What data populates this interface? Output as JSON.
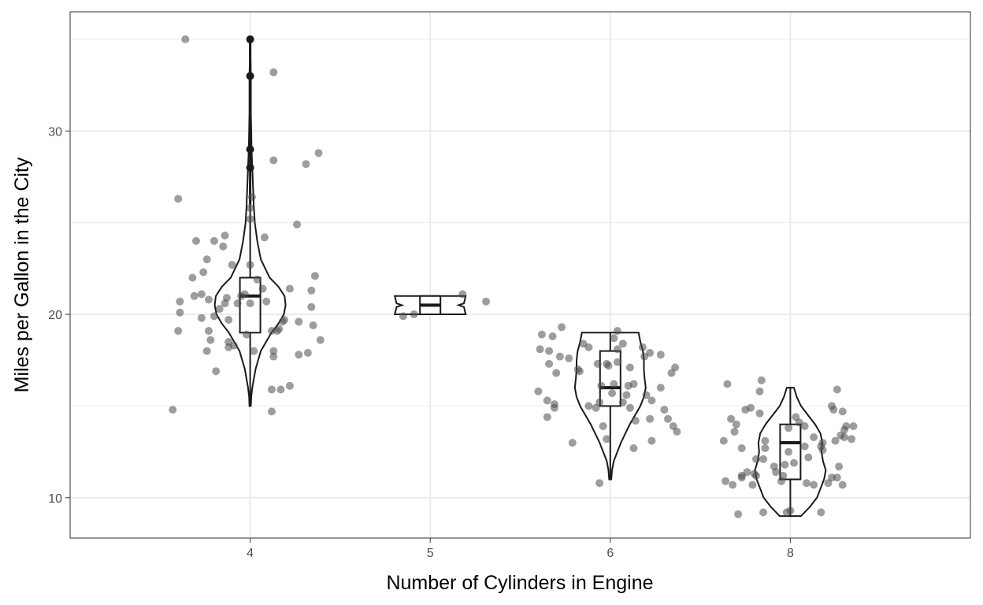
{
  "chart_data": {
    "type": "violin",
    "title": "",
    "xlabel": "Number of Cylinders in Engine",
    "ylabel": "Miles per Gallon in the City",
    "categories": [
      "4",
      "5",
      "6",
      "8"
    ],
    "ylim": [
      7.8,
      36.5
    ],
    "yticks": [
      10,
      20,
      30
    ],
    "grid": true,
    "colors": {
      "point": "#4d4d4d",
      "outline": "#1a1a1a",
      "grid": "#ebebeb",
      "panel_border": "#333333"
    },
    "violins": [
      {
        "category": "4",
        "density": [
          [
            15,
            0.02
          ],
          [
            15.5,
            0.03
          ],
          [
            16,
            0.06
          ],
          [
            17,
            0.15
          ],
          [
            18,
            0.3
          ],
          [
            19,
            0.6
          ],
          [
            19.5,
            0.8
          ],
          [
            20,
            0.95
          ],
          [
            20.5,
            1.0
          ],
          [
            21,
            0.97
          ],
          [
            21.5,
            0.8
          ],
          [
            22,
            0.55
          ],
          [
            23,
            0.3
          ],
          [
            24,
            0.2
          ],
          [
            25,
            0.13
          ],
          [
            26,
            0.1
          ],
          [
            27,
            0.08
          ],
          [
            28,
            0.06
          ],
          [
            29,
            0.04
          ],
          [
            30,
            0.03
          ],
          [
            31,
            0.02
          ],
          [
            32,
            0.02
          ],
          [
            33,
            0.02
          ],
          [
            34,
            0.01
          ],
          [
            35,
            0.01
          ]
        ]
      },
      {
        "category": "5",
        "density": [
          [
            20,
            1.0
          ],
          [
            20.4,
            0.95
          ],
          [
            20.5,
            0.8
          ],
          [
            20.6,
            0.95
          ],
          [
            21,
            1.0
          ]
        ]
      },
      {
        "category": "6",
        "density": [
          [
            11,
            0.03
          ],
          [
            11.5,
            0.05
          ],
          [
            12,
            0.1
          ],
          [
            13,
            0.3
          ],
          [
            14,
            0.55
          ],
          [
            15,
            0.85
          ],
          [
            15.5,
            0.95
          ],
          [
            16,
            1.0
          ],
          [
            16.5,
            0.97
          ],
          [
            17,
            0.95
          ],
          [
            17.5,
            0.95
          ],
          [
            18,
            0.92
          ],
          [
            18.5,
            0.85
          ],
          [
            19,
            0.8
          ]
        ]
      },
      {
        "category": "8",
        "density": [
          [
            9,
            0.3
          ],
          [
            9.5,
            0.55
          ],
          [
            10,
            0.75
          ],
          [
            10.5,
            0.85
          ],
          [
            11,
            0.95
          ],
          [
            11.5,
            1.0
          ],
          [
            12,
            0.92
          ],
          [
            12.5,
            0.88
          ],
          [
            13,
            0.9
          ],
          [
            13.5,
            0.85
          ],
          [
            14,
            0.7
          ],
          [
            14.5,
            0.5
          ],
          [
            15,
            0.3
          ],
          [
            15.5,
            0.18
          ],
          [
            16,
            0.1
          ]
        ]
      }
    ],
    "boxes": [
      {
        "category": "4",
        "q1": 19,
        "median": 21,
        "q3": 22,
        "whisker_low": 15,
        "whisker_high": 26,
        "outliers": [
          28,
          29,
          33,
          35
        ]
      },
      {
        "category": "5",
        "q1": 20,
        "median": 20.5,
        "q3": 21,
        "whisker_low": 20,
        "whisker_high": 21,
        "outliers": []
      },
      {
        "category": "6",
        "q1": 15,
        "median": 16,
        "q3": 18,
        "whisker_low": 11,
        "whisker_high": 19,
        "outliers": []
      },
      {
        "category": "8",
        "q1": 11,
        "median": 13,
        "q3": 14,
        "whisker_low": 9,
        "whisker_high": 16,
        "outliers": []
      }
    ],
    "points": [
      {
        "x": 3.64,
        "y": 35
      },
      {
        "x": 4.13,
        "y": 33.2
      },
      {
        "x": 4.38,
        "y": 28.8
      },
      {
        "x": 4.13,
        "y": 28.4
      },
      {
        "x": 4.31,
        "y": 28.2
      },
      {
        "x": 3.6,
        "y": 26.3
      },
      {
        "x": 4.01,
        "y": 26.4
      },
      {
        "x": 4.0,
        "y": 25.8
      },
      {
        "x": 4.26,
        "y": 24.9
      },
      {
        "x": 4.0,
        "y": 25.2
      },
      {
        "x": 3.86,
        "y": 24.3
      },
      {
        "x": 4.08,
        "y": 24.2
      },
      {
        "x": 3.7,
        "y": 24
      },
      {
        "x": 3.8,
        "y": 24
      },
      {
        "x": 3.85,
        "y": 23.7
      },
      {
        "x": 3.76,
        "y": 23
      },
      {
        "x": 3.9,
        "y": 22.7
      },
      {
        "x": 4.0,
        "y": 22.7
      },
      {
        "x": 3.74,
        "y": 22.3
      },
      {
        "x": 3.68,
        "y": 22
      },
      {
        "x": 4.36,
        "y": 22.1
      },
      {
        "x": 4.04,
        "y": 21.9
      },
      {
        "x": 4.22,
        "y": 21.4
      },
      {
        "x": 4.07,
        "y": 21.4
      },
      {
        "x": 4.34,
        "y": 21.3
      },
      {
        "x": 3.73,
        "y": 21.1
      },
      {
        "x": 3.69,
        "y": 21
      },
      {
        "x": 3.61,
        "y": 20.7
      },
      {
        "x": 3.77,
        "y": 20.8
      },
      {
        "x": 3.87,
        "y": 20.9
      },
      {
        "x": 3.86,
        "y": 20.6
      },
      {
        "x": 4.0,
        "y": 20.6
      },
      {
        "x": 4.09,
        "y": 20.7
      },
      {
        "x": 3.83,
        "y": 20.3
      },
      {
        "x": 4.34,
        "y": 20.4
      },
      {
        "x": 3.61,
        "y": 20.1
      },
      {
        "x": 3.93,
        "y": 20.6
      },
      {
        "x": 3.8,
        "y": 19.9
      },
      {
        "x": 3.73,
        "y": 19.8
      },
      {
        "x": 3.88,
        "y": 19.7
      },
      {
        "x": 4.19,
        "y": 19.7
      },
      {
        "x": 4.18,
        "y": 19.6
      },
      {
        "x": 4.27,
        "y": 19.6
      },
      {
        "x": 4.35,
        "y": 19.4
      },
      {
        "x": 3.6,
        "y": 19.1
      },
      {
        "x": 3.77,
        "y": 19.1
      },
      {
        "x": 4.16,
        "y": 19.2
      },
      {
        "x": 4.15,
        "y": 19.1
      },
      {
        "x": 4.12,
        "y": 19.1
      },
      {
        "x": 3.98,
        "y": 18.9
      },
      {
        "x": 3.88,
        "y": 18.5
      },
      {
        "x": 3.78,
        "y": 18.6
      },
      {
        "x": 4.39,
        "y": 18.6
      },
      {
        "x": 3.88,
        "y": 18.2
      },
      {
        "x": 3.91,
        "y": 18.3
      },
      {
        "x": 3.76,
        "y": 18
      },
      {
        "x": 4.13,
        "y": 18
      },
      {
        "x": 4.02,
        "y": 18
      },
      {
        "x": 4.32,
        "y": 17.9
      },
      {
        "x": 4.27,
        "y": 17.8
      },
      {
        "x": 4.13,
        "y": 17.7
      },
      {
        "x": 3.81,
        "y": 16.9
      },
      {
        "x": 4.17,
        "y": 15.9
      },
      {
        "x": 4.22,
        "y": 16.1
      },
      {
        "x": 4.12,
        "y": 15.9
      },
      {
        "x": 3.57,
        "y": 14.8
      },
      {
        "x": 4.12,
        "y": 14.7
      },
      {
        "x": 3.97,
        "y": 21.1
      },
      {
        "x": 3.95,
        "y": 21.0
      },
      {
        "x": 4.85,
        "y": 19.9
      },
      {
        "x": 4.91,
        "y": 20
      },
      {
        "x": 5.18,
        "y": 21.1
      },
      {
        "x": 5.31,
        "y": 20.7
      },
      {
        "x": 5.62,
        "y": 18.9
      },
      {
        "x": 5.68,
        "y": 18.8
      },
      {
        "x": 5.73,
        "y": 19.3
      },
      {
        "x": 5.61,
        "y": 18.1
      },
      {
        "x": 5.66,
        "y": 18
      },
      {
        "x": 5.85,
        "y": 18.4
      },
      {
        "x": 5.88,
        "y": 18.2
      },
      {
        "x": 6.04,
        "y": 19.1
      },
      {
        "x": 6.02,
        "y": 18.7
      },
      {
        "x": 6.07,
        "y": 18.4
      },
      {
        "x": 6.04,
        "y": 18.1
      },
      {
        "x": 6.18,
        "y": 18.2
      },
      {
        "x": 6.22,
        "y": 17.9
      },
      {
        "x": 6.28,
        "y": 17.8
      },
      {
        "x": 6.19,
        "y": 17.7
      },
      {
        "x": 5.72,
        "y": 17.7
      },
      {
        "x": 5.77,
        "y": 17.6
      },
      {
        "x": 5.66,
        "y": 17.3
      },
      {
        "x": 5.82,
        "y": 17
      },
      {
        "x": 5.7,
        "y": 16.8
      },
      {
        "x": 5.93,
        "y": 17.3
      },
      {
        "x": 5.99,
        "y": 17.2
      },
      {
        "x": 5.98,
        "y": 17.3
      },
      {
        "x": 6.04,
        "y": 17.4
      },
      {
        "x": 6.11,
        "y": 17.1
      },
      {
        "x": 6.36,
        "y": 17.1
      },
      {
        "x": 6.34,
        "y": 16.8
      },
      {
        "x": 5.83,
        "y": 16.9
      },
      {
        "x": 5.95,
        "y": 16.1
      },
      {
        "x": 6.02,
        "y": 16.2
      },
      {
        "x": 6.1,
        "y": 16.1
      },
      {
        "x": 6.13,
        "y": 16.2
      },
      {
        "x": 6.28,
        "y": 16
      },
      {
        "x": 5.6,
        "y": 15.8
      },
      {
        "x": 5.94,
        "y": 15.2
      },
      {
        "x": 5.88,
        "y": 15
      },
      {
        "x": 5.92,
        "y": 14.9
      },
      {
        "x": 5.65,
        "y": 15.3
      },
      {
        "x": 5.69,
        "y": 15.1
      },
      {
        "x": 5.69,
        "y": 14.9
      },
      {
        "x": 6.01,
        "y": 15.7
      },
      {
        "x": 6.09,
        "y": 15.6
      },
      {
        "x": 6.07,
        "y": 15.2
      },
      {
        "x": 6.2,
        "y": 15.6
      },
      {
        "x": 6.23,
        "y": 15.3
      },
      {
        "x": 6.3,
        "y": 14.8
      },
      {
        "x": 6.32,
        "y": 14.3
      },
      {
        "x": 6.22,
        "y": 14.3
      },
      {
        "x": 6.14,
        "y": 14.2
      },
      {
        "x": 5.65,
        "y": 14.4
      },
      {
        "x": 5.96,
        "y": 13.9
      },
      {
        "x": 5.98,
        "y": 13.2
      },
      {
        "x": 6.35,
        "y": 13.9
      },
      {
        "x": 6.37,
        "y": 13.6
      },
      {
        "x": 6.23,
        "y": 13.1
      },
      {
        "x": 5.79,
        "y": 13
      },
      {
        "x": 6.13,
        "y": 12.7
      },
      {
        "x": 5.94,
        "y": 10.8
      },
      {
        "x": 6.11,
        "y": 14.9
      },
      {
        "x": 7.84,
        "y": 16.4
      },
      {
        "x": 7.83,
        "y": 15.8
      },
      {
        "x": 7.65,
        "y": 16.2
      },
      {
        "x": 8.26,
        "y": 15.9
      },
      {
        "x": 8.23,
        "y": 15
      },
      {
        "x": 8.24,
        "y": 14.8
      },
      {
        "x": 8.29,
        "y": 14.7
      },
      {
        "x": 7.75,
        "y": 14.8
      },
      {
        "x": 7.78,
        "y": 14.9
      },
      {
        "x": 7.83,
        "y": 14.6
      },
      {
        "x": 8.03,
        "y": 14.4
      },
      {
        "x": 7.67,
        "y": 14.3
      },
      {
        "x": 7.7,
        "y": 14
      },
      {
        "x": 7.99,
        "y": 13.8
      },
      {
        "x": 8.05,
        "y": 14.1
      },
      {
        "x": 8.08,
        "y": 13.9
      },
      {
        "x": 8.31,
        "y": 13.9
      },
      {
        "x": 8.35,
        "y": 13.9
      },
      {
        "x": 7.69,
        "y": 13.6
      },
      {
        "x": 7.86,
        "y": 13.1
      },
      {
        "x": 8.13,
        "y": 13.3
      },
      {
        "x": 8.18,
        "y": 13
      },
      {
        "x": 8.25,
        "y": 13.1
      },
      {
        "x": 8.28,
        "y": 13.4
      },
      {
        "x": 8.3,
        "y": 13.3
      },
      {
        "x": 8.34,
        "y": 13.2
      },
      {
        "x": 8.17,
        "y": 12.8
      },
      {
        "x": 8.18,
        "y": 12.6
      },
      {
        "x": 7.63,
        "y": 13.1
      },
      {
        "x": 7.73,
        "y": 12.7
      },
      {
        "x": 7.86,
        "y": 12.7
      },
      {
        "x": 7.85,
        "y": 12.1
      },
      {
        "x": 7.99,
        "y": 12.5
      },
      {
        "x": 8.08,
        "y": 12.8
      },
      {
        "x": 8.1,
        "y": 12.2
      },
      {
        "x": 7.81,
        "y": 12.1
      },
      {
        "x": 7.91,
        "y": 11.7
      },
      {
        "x": 7.97,
        "y": 11.8
      },
      {
        "x": 8.02,
        "y": 11.9
      },
      {
        "x": 8.27,
        "y": 11.7
      },
      {
        "x": 7.73,
        "y": 11.2
      },
      {
        "x": 7.73,
        "y": 11.1
      },
      {
        "x": 7.76,
        "y": 11.4
      },
      {
        "x": 7.8,
        "y": 11.3
      },
      {
        "x": 7.81,
        "y": 11.2
      },
      {
        "x": 7.92,
        "y": 11.4
      },
      {
        "x": 7.96,
        "y": 11.2
      },
      {
        "x": 8.23,
        "y": 11.1
      },
      {
        "x": 8.26,
        "y": 11.1
      },
      {
        "x": 8.09,
        "y": 10.8
      },
      {
        "x": 8.13,
        "y": 10.7
      },
      {
        "x": 8.21,
        "y": 10.8
      },
      {
        "x": 8.29,
        "y": 10.7
      },
      {
        "x": 7.64,
        "y": 10.9
      },
      {
        "x": 7.68,
        "y": 10.7
      },
      {
        "x": 7.79,
        "y": 10.7
      },
      {
        "x": 7.95,
        "y": 10.9
      },
      {
        "x": 7.98,
        "y": 9.2
      },
      {
        "x": 8.0,
        "y": 9.3
      },
      {
        "x": 7.85,
        "y": 9.2
      },
      {
        "x": 8.17,
        "y": 9.2
      },
      {
        "x": 7.71,
        "y": 9.1
      },
      {
        "x": 8.3,
        "y": 13.7
      }
    ]
  }
}
